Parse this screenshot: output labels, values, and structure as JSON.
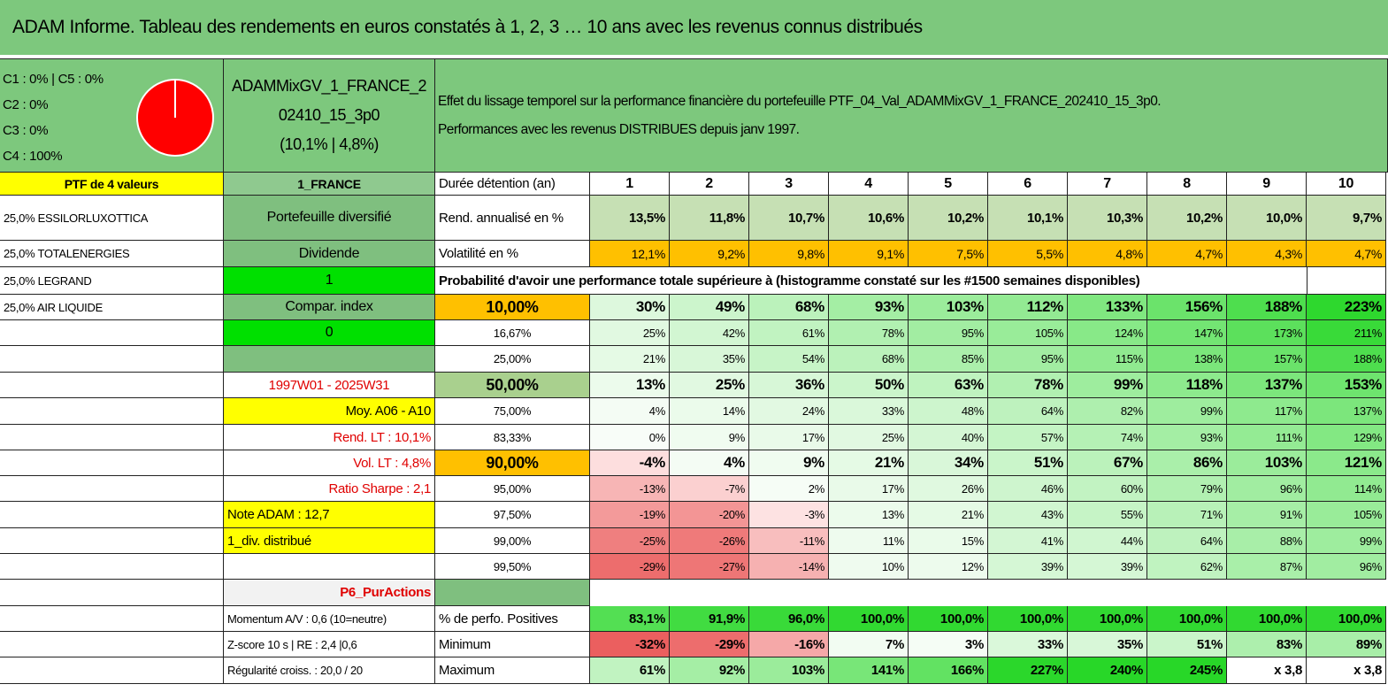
{
  "title": "ADAM Informe. Tableau des rendements en euros constatés à 1, 2, 3 … 10 ans avec les revenus connus distribués",
  "allocation": {
    "lines": [
      "C1 : 0% | C5 : 0%",
      "C2 : 0%",
      "C3 : 0%",
      "C4 : 100%"
    ]
  },
  "portfolio": {
    "name_lines": [
      "ADAMMixGV_1_FRANCE_2",
      "02410_15_3p0",
      "(10,1% | 4,8%)"
    ]
  },
  "description": {
    "lines": [
      "Effet du lissage temporel sur la performance financière du portefeuille PTF_04_Val_ADAMMixGV_1_FRANCE_202410_15_3p0.",
      "Performances avec les revenus DISTRIBUES depuis janv 1997."
    ]
  },
  "rows": [
    {
      "a": "PTF de 4 valeurs",
      "b": "1_FRANCE",
      "c": "Durée détention (an)",
      "values": [
        "1",
        "2",
        "3",
        "4",
        "5",
        "6",
        "7",
        "8",
        "9",
        "10"
      ]
    },
    {
      "a": "25,0% ESSILORLUXOTTICA",
      "b": "Portefeuille diversifié",
      "c": "Rend. annualisé en %",
      "values": [
        "13,5%",
        "11,8%",
        "10,7%",
        "10,6%",
        "10,2%",
        "10,1%",
        "10,3%",
        "10,2%",
        "10,0%",
        "9,7%"
      ]
    },
    {
      "a": "25,0% TOTALENERGIES",
      "b": "Dividende",
      "c": "Volatilité en %",
      "values": [
        "12,1%",
        "9,2%",
        "9,8%",
        "9,1%",
        "7,5%",
        "5,5%",
        "4,8%",
        "4,7%",
        "4,3%",
        "4,7%"
      ]
    },
    {
      "a": "25,0% LEGRAND",
      "b": "1",
      "span": "Probabilité d'avoir une performance totale supérieure à (histogramme constaté sur les #1500 semaines disponibles)"
    },
    {
      "a": "25,0% AIR LIQUIDE",
      "b": "Compar. index",
      "c": "10,00%",
      "values": [
        "30%",
        "49%",
        "68%",
        "93%",
        "103%",
        "112%",
        "133%",
        "156%",
        "188%",
        "223%"
      ]
    },
    {
      "b": "0",
      "c": "16,67%",
      "values": [
        "25%",
        "42%",
        "61%",
        "78%",
        "95%",
        "105%",
        "124%",
        "147%",
        "173%",
        "211%"
      ]
    },
    {
      "c": "25,00%",
      "values": [
        "21%",
        "35%",
        "54%",
        "68%",
        "85%",
        "95%",
        "115%",
        "138%",
        "157%",
        "188%"
      ]
    },
    {
      "b": "1997W01 - 2025W31",
      "c": "50,00%",
      "values": [
        "13%",
        "25%",
        "36%",
        "50%",
        "63%",
        "78%",
        "99%",
        "118%",
        "137%",
        "153%"
      ]
    },
    {
      "b": "Moy. A06 - A10",
      "c": "75,00%",
      "values": [
        "4%",
        "14%",
        "24%",
        "33%",
        "48%",
        "64%",
        "82%",
        "99%",
        "117%",
        "137%"
      ]
    },
    {
      "b": "Rend. LT : 10,1%",
      "c": "83,33%",
      "values": [
        "0%",
        "9%",
        "17%",
        "25%",
        "40%",
        "57%",
        "74%",
        "93%",
        "111%",
        "129%"
      ]
    },
    {
      "b": "Vol. LT : 4,8%",
      "c": "90,00%",
      "values": [
        "-4%",
        "4%",
        "9%",
        "21%",
        "34%",
        "51%",
        "67%",
        "86%",
        "103%",
        "121%"
      ]
    },
    {
      "b": "Ratio Sharpe : 2,1",
      "c": "95,00%",
      "values": [
        "-13%",
        "-7%",
        "2%",
        "17%",
        "26%",
        "46%",
        "60%",
        "79%",
        "96%",
        "114%"
      ]
    },
    {
      "b": "Note ADAM : 12,7",
      "c": "97,50%",
      "values": [
        "-19%",
        "-20%",
        "-3%",
        "13%",
        "21%",
        "43%",
        "55%",
        "71%",
        "91%",
        "105%"
      ]
    },
    {
      "b": "1_div. distribué",
      "c": "99,00%",
      "values": [
        "-25%",
        "-26%",
        "-11%",
        "11%",
        "15%",
        "41%",
        "44%",
        "64%",
        "88%",
        "99%"
      ]
    },
    {
      "c": "99,50%",
      "values": [
        "-29%",
        "-27%",
        "-14%",
        "10%",
        "12%",
        "39%",
        "39%",
        "62%",
        "87%",
        "96%"
      ]
    },
    {
      "b": "P6_PurActions"
    },
    {
      "b": "Momentum A/V : 0,6 (10=neutre)",
      "c": "% de perfo. Positives",
      "values": [
        "83,1%",
        "91,9%",
        "96,0%",
        "100,0%",
        "100,0%",
        "100,0%",
        "100,0%",
        "100,0%",
        "100,0%",
        "100,0%"
      ]
    },
    {
      "b": "Z-score 10 s | RE : 2,4 |0,6",
      "c": "Minimum",
      "values": [
        "-32%",
        "-29%",
        "-16%",
        "7%",
        "3%",
        "33%",
        "35%",
        "51%",
        "83%",
        "89%"
      ]
    },
    {
      "b": "Régularité croiss. : 20,0 / 20",
      "c": "Maximum",
      "values": [
        "61%",
        "92%",
        "103%",
        "141%",
        "166%",
        "227%",
        "240%",
        "245%",
        "x 3,8",
        "x 3,8"
      ]
    }
  ]
}
